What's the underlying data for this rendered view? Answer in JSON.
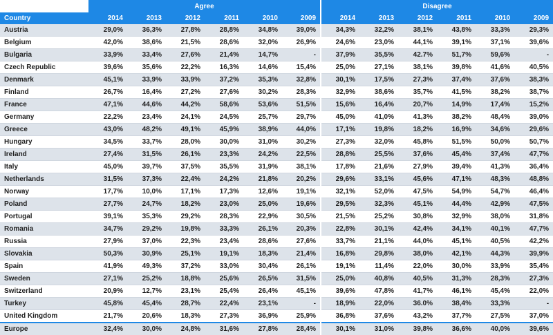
{
  "groups": {
    "agree": "Agree",
    "disagree": "Disagree"
  },
  "columns": {
    "country": "Country",
    "agree": [
      "2014",
      "2013",
      "2012",
      "2011",
      "2010",
      "2009"
    ],
    "disagree": [
      "2014",
      "2013",
      "2012",
      "2011",
      "2010",
      "2009"
    ]
  },
  "rows": [
    {
      "country": "Austria",
      "agree": [
        "29,0%",
        "36,3%",
        "27,8%",
        "28,8%",
        "34,8%",
        "39,0%"
      ],
      "disagree": [
        "34,3%",
        "32,2%",
        "38,1%",
        "43,8%",
        "33,3%",
        "29,3%"
      ]
    },
    {
      "country": "Belgium",
      "agree": [
        "42,0%",
        "38,6%",
        "21,5%",
        "28,6%",
        "32,0%",
        "26,9%"
      ],
      "disagree": [
        "24,6%",
        "23,0%",
        "44,1%",
        "39,1%",
        "37,1%",
        "39,6%"
      ]
    },
    {
      "country": "Bulgaria",
      "agree": [
        "33,9%",
        "33,4%",
        "27,6%",
        "21,4%",
        "14,7%",
        "-"
      ],
      "disagree": [
        "37,9%",
        "35,5%",
        "42.7%",
        "51,7%",
        "59,6%",
        "-"
      ]
    },
    {
      "country": "Czech Republic",
      "agree": [
        "39,6%",
        "35,6%",
        "22,2%",
        "16,3%",
        "14,6%",
        "15,4%"
      ],
      "disagree": [
        "25,0%",
        "27,1%",
        "38,1%",
        "39,8%",
        "41,6%",
        "40,5%"
      ]
    },
    {
      "country": "Denmark",
      "agree": [
        "45,1%",
        "33,9%",
        "33,9%",
        "37,2%",
        "35,3%",
        "32,8%"
      ],
      "disagree": [
        "30,1%",
        "17,5%",
        "27,3%",
        "37,4%",
        "37,6%",
        "38,3%"
      ]
    },
    {
      "country": "Finland",
      "agree": [
        "26,7%",
        "16,4%",
        "27,2%",
        "27,6%",
        "30,2%",
        "28,3%"
      ],
      "disagree": [
        "32,9%",
        "38,6%",
        "35,7%",
        "41,5%",
        "38,2%",
        "38,7%"
      ]
    },
    {
      "country": "France",
      "agree": [
        "47,1%",
        "44,6%",
        "44,2%",
        "58,6%",
        "53,6%",
        "51,5%"
      ],
      "disagree": [
        "15,6%",
        "16,4%",
        "20,7%",
        "14,9%",
        "17,4%",
        "15,2%"
      ]
    },
    {
      "country": "Germany",
      "agree": [
        "22,2%",
        "23,4%",
        "24,1%",
        "24,5%",
        "25,7%",
        "29,7%"
      ],
      "disagree": [
        "45,0%",
        "41,0%",
        "41,3%",
        "38,2%",
        "48,4%",
        "39,0%"
      ]
    },
    {
      "country": "Greece",
      "agree": [
        "43,0%",
        "48,2%",
        "49,1%",
        "45,9%",
        "38,9%",
        "44,0%"
      ],
      "disagree": [
        "17,1%",
        "19,8%",
        "18,2%",
        "16,9%",
        "34,6%",
        "29,6%"
      ]
    },
    {
      "country": "Hungary",
      "agree": [
        "34,5%",
        "33,7%",
        "28,0%",
        "30,0%",
        "31,0%",
        "30,2%"
      ],
      "disagree": [
        "27,3%",
        "32,0%",
        "45,8%",
        "51,5%",
        "50,0%",
        "50,7%"
      ]
    },
    {
      "country": "Ireland",
      "agree": [
        "27,4%",
        "31,5%",
        "26,1%",
        "23,3%",
        "24,2%",
        "22,5%"
      ],
      "disagree": [
        "28,8%",
        "25,5%",
        "37,6%",
        "45,4%",
        "37,4%",
        "47,7%"
      ]
    },
    {
      "country": "Italy",
      "agree": [
        "45,0%",
        "39,7%",
        "37,5%",
        "35,5%",
        "31,9%",
        "38,1%"
      ],
      "disagree": [
        "17,8%",
        "21,6%",
        "27,9%",
        "39,4%",
        "41,3%",
        "36,4%"
      ]
    },
    {
      "country": "Netherlands",
      "agree": [
        "31,5%",
        "37,3%",
        "22,4%",
        "24,2%",
        "21,8%",
        "20,2%"
      ],
      "disagree": [
        "29,6%",
        "33,1%",
        "45,6%",
        "47,1%",
        "48,3%",
        "48,8%"
      ]
    },
    {
      "country": "Norway",
      "agree": [
        "17,7%",
        "10,0%",
        "17,1%",
        "17,3%",
        "12,6%",
        "19,1%"
      ],
      "disagree": [
        "32,1%",
        "52,0%",
        "47,5%",
        "54,9%",
        "54,7%",
        "46,4%"
      ]
    },
    {
      "country": "Poland",
      "agree": [
        "27,7%",
        "24,7%",
        "18,2%",
        "23,0%",
        "25,0%",
        "19,6%"
      ],
      "disagree": [
        "29,5%",
        "32,3%",
        "45,1%",
        "44,4%",
        "42,9%",
        "47,5%"
      ]
    },
    {
      "country": "Portugal",
      "agree": [
        "39,1%",
        "35,3%",
        "29,2%",
        "28,3%",
        "22,9%",
        "30,5%"
      ],
      "disagree": [
        "21,5%",
        "25,2%",
        "30,8%",
        "32,9%",
        "38,0%",
        "31,8%"
      ]
    },
    {
      "country": "Romania",
      "agree": [
        "34,7%",
        "29,2%",
        "19,8%",
        "33,3%",
        "26,1%",
        "20,3%"
      ],
      "disagree": [
        "22,8%",
        "30,1%",
        "42,4%",
        "34,1%",
        "40,1%",
        "47,7%"
      ]
    },
    {
      "country": "Russia",
      "agree": [
        "27,9%",
        "37,0%",
        "22,3%",
        "23,4%",
        "28,6%",
        "27,6%"
      ],
      "disagree": [
        "33,7%",
        "21,1%",
        "44,0%",
        "45,1%",
        "40,5%",
        "42,2%"
      ]
    },
    {
      "country": "Slovakia",
      "agree": [
        "50,3%",
        "30,9%",
        "25,1%",
        "19,1%",
        "18,3%",
        "21,4%"
      ],
      "disagree": [
        "16,8%",
        "29,8%",
        "38,0%",
        "42,1%",
        "44,3%",
        "39,9%"
      ]
    },
    {
      "country": "Spain",
      "agree": [
        "41,9%",
        "49,3%",
        "37,2%",
        "33,0%",
        "30,4%",
        "26,1%"
      ],
      "disagree": [
        "19,1%",
        "11,4%",
        "22,0%",
        "30,0%",
        "33,9%",
        "35,4%"
      ]
    },
    {
      "country": "Sweden",
      "agree": [
        "27,1%",
        "25,2%",
        "18,8%",
        "25,6%",
        "26,5%",
        "31,5%"
      ],
      "disagree": [
        "25,0%",
        "40,8%",
        "40,5%",
        "31,3%",
        "28,3%",
        "27,3%"
      ]
    },
    {
      "country": "Switzerland",
      "agree": [
        "20,9%",
        "12,7%",
        "23,1%",
        "25,4%",
        "26,4%",
        "45,1%"
      ],
      "disagree": [
        "39,6%",
        "47,8%",
        "41,7%",
        "46,1%",
        "45,4%",
        "22,0%"
      ]
    },
    {
      "country": "Turkey",
      "agree": [
        "45,8%",
        "45,4%",
        "28,7%",
        "22,4%",
        "23,1%",
        "-"
      ],
      "disagree": [
        "18,9%",
        "22,0%",
        "36.0%",
        "38,4%",
        "33,3%",
        "-"
      ]
    },
    {
      "country": "United Kingdom",
      "agree": [
        "21,7%",
        "20,6%",
        "18,3%",
        "27,3%",
        "36,9%",
        "25,9%"
      ],
      "disagree": [
        "36,8%",
        "37,6%",
        "43,2%",
        "37,7%",
        "27,5%",
        "37,0%"
      ]
    }
  ],
  "total": {
    "country": "Europe",
    "agree": [
      "32,4%",
      "30,0%",
      "24,8%",
      "31,6%",
      "27,8%",
      "28,4%"
    ],
    "disagree": [
      "30,1%",
      "31,0%",
      "39,8%",
      "36,6%",
      "40,0%",
      "39,6%"
    ]
  },
  "colors": {
    "header": "#1e88e5",
    "shade": "#dde3ea",
    "rule": "#cfd6df"
  }
}
